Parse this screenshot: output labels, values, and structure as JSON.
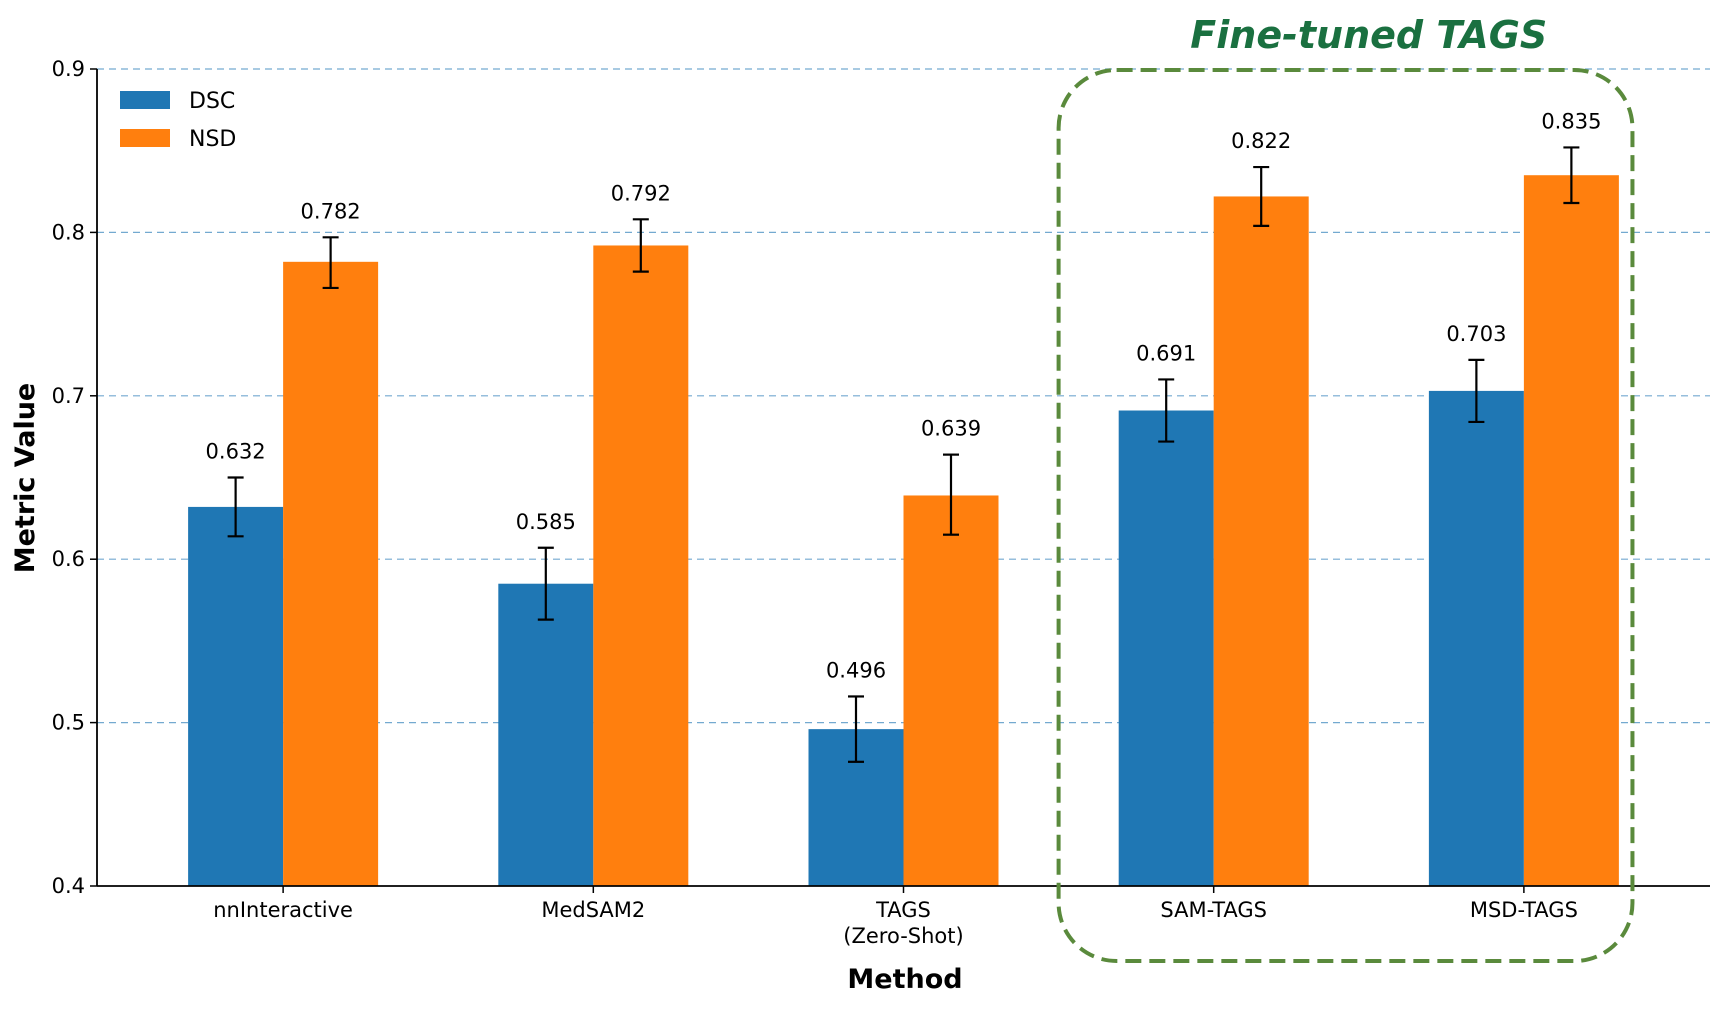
{
  "chart_data": {
    "type": "bar",
    "title": "",
    "xlabel": "Method",
    "ylabel": "Metric Value",
    "ylim": [
      0.4,
      0.9
    ],
    "yticks": [
      "0.4",
      "0.5",
      "0.6",
      "0.7",
      "0.8",
      "0.9"
    ],
    "grid": "horizontal dashed",
    "legend_position": "top-left",
    "categories": [
      [
        "nnInteractive"
      ],
      [
        "MedSAM2"
      ],
      [
        "TAGS",
        "(Zero-Shot)"
      ],
      [
        "SAM-TAGS"
      ],
      [
        "MSD-TAGS"
      ]
    ],
    "series": [
      {
        "name": "DSC",
        "color": "#1f77b4",
        "values": [
          0.632,
          0.585,
          0.496,
          0.691,
          0.703
        ],
        "labels": [
          "0.632",
          "0.585",
          "0.496",
          "0.691",
          "0.703"
        ],
        "error_low": [
          0.614,
          0.563,
          0.476,
          0.672,
          0.684
        ],
        "error_high": [
          0.65,
          0.607,
          0.516,
          0.71,
          0.722
        ]
      },
      {
        "name": "NSD",
        "color": "#ff7f0e",
        "values": [
          0.782,
          0.792,
          0.639,
          0.822,
          0.835
        ],
        "labels": [
          "0.782",
          "0.792",
          "0.639",
          "0.822",
          "0.835"
        ],
        "error_low": [
          0.766,
          0.776,
          0.615,
          0.804,
          0.818
        ],
        "error_high": [
          0.797,
          0.808,
          0.664,
          0.84,
          0.852
        ]
      }
    ],
    "annotation": {
      "text": "Fine-tuned TAGS",
      "color": "#1a7040",
      "box_color": "#5a8a3c",
      "covers_categories": [
        "SAM-TAGS",
        "MSD-TAGS"
      ]
    }
  }
}
